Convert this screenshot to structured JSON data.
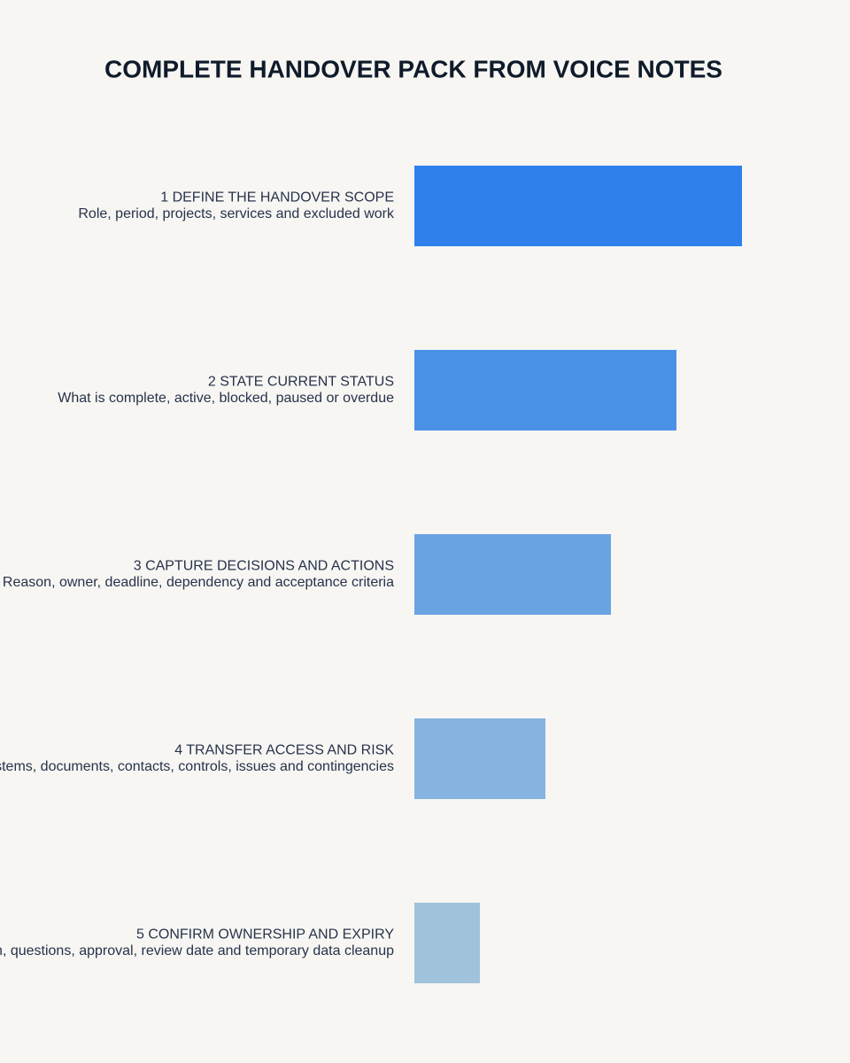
{
  "chart_data": {
    "type": "bar",
    "orientation": "horizontal",
    "title": "COMPLETE HANDOVER PACK FROM VOICE NOTES",
    "categories": [
      "1 DEFINE THE HANDOVER SCOPE",
      "2 STATE CURRENT STATUS",
      "3 CAPTURE DECISIONS AND ACTIONS",
      "4 TRANSFER ACCESS AND RISK",
      "5 CONFIRM OWNERSHIP AND EXPIRY"
    ],
    "descriptions": [
      "Role, period, projects, services and excluded work",
      "What is complete, active, blocked, paused or overdue",
      "Reason, owner, deadline, dependency and acceptance criteria",
      "Systems, documents, contacts, controls, issues and contingencies",
      "Reason, questions, approval, review date and temporary data cleanup"
    ],
    "values": [
      5,
      4,
      3,
      2,
      1
    ],
    "colors": [
      "#2f80ed",
      "#4b91e8",
      "#69a4e2",
      "#86b3df",
      "#a0c2db"
    ]
  }
}
